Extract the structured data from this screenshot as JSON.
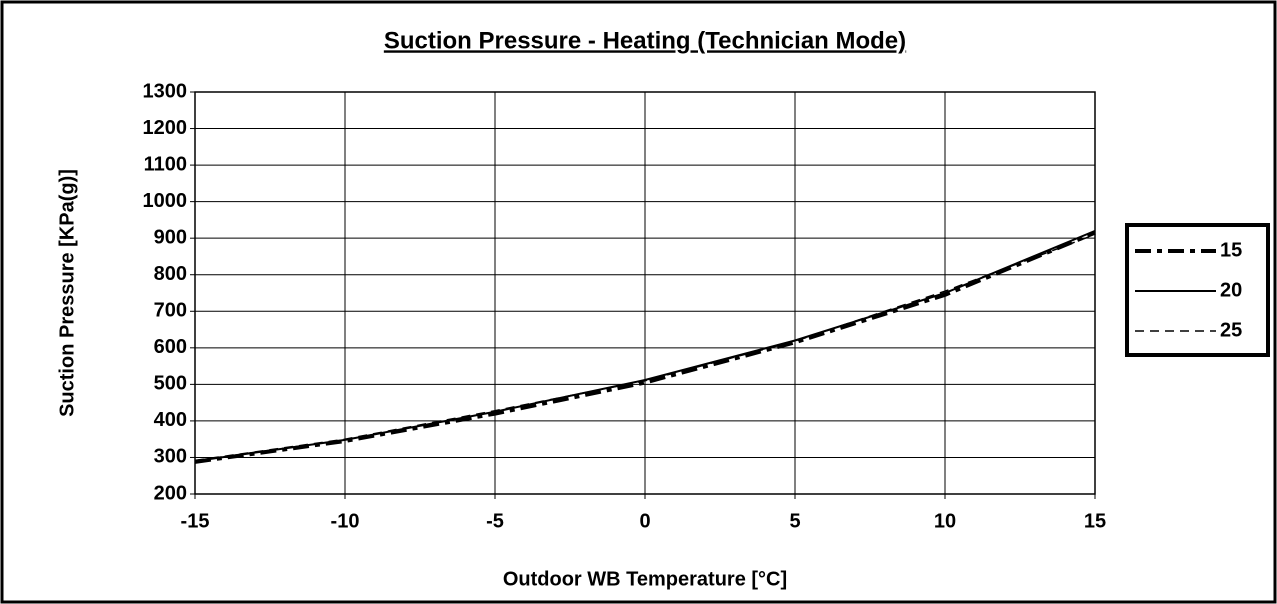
{
  "chart_data": {
    "type": "line",
    "title": "Suction Pressure - Heating (Technician Mode)",
    "x_label": "Outdoor WB Temperature [°C]",
    "y_label": "Suction Pressure [KPa(g)]",
    "x": [
      -15,
      -10,
      -5,
      0,
      5,
      10,
      15
    ],
    "series": [
      {
        "name": "15",
        "color": "#000000",
        "values": [
          288,
          345,
          420,
          505,
          615,
          745,
          915
        ]
      },
      {
        "name": "20",
        "color": "#000000",
        "values": [
          290,
          348,
          425,
          512,
          620,
          750,
          920
        ]
      },
      {
        "name": "25",
        "color": "#000000",
        "values": [
          292,
          350,
          428,
          510,
          618,
          755,
          910
        ]
      }
    ],
    "xlim": [
      -15,
      15
    ],
    "xticks": [
      -15,
      -10,
      -5,
      0,
      5,
      10,
      15
    ],
    "ylim": [
      200,
      1300
    ],
    "yticks": [
      200,
      300,
      400,
      500,
      600,
      700,
      800,
      900,
      1000,
      1100,
      1200,
      1300
    ],
    "grid": true,
    "legend": "right"
  }
}
